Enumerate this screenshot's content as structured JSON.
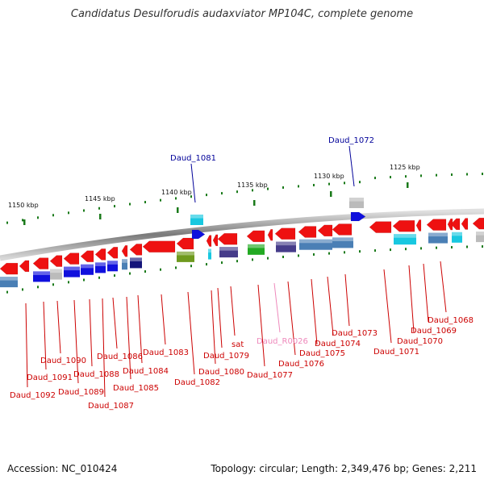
{
  "title": "Candidatus Desulforudis audaxviator MP104C, complete genome",
  "footer": {
    "accession": "Accession: NC_010424",
    "topology": "Topology: circular; Length: 2,349,476 bp; Genes: 2,211"
  },
  "scale": [
    "1150 kbp",
    "1145 kbp",
    "1140 kbp",
    "1135 kbp",
    "1130 kbp",
    "1125 kbp"
  ],
  "top_labels": [
    "Daud_1081",
    "Daud_1072"
  ],
  "bottom_labels": [
    "Daud_1092",
    "Daud_1091",
    "Daud_1090",
    "Daud_1089",
    "Daud_1088",
    "Daud_1087",
    "Daud_1086",
    "Daud_1085",
    "Daud_1084",
    "Daud_1083",
    "Daud_1082",
    "Daud_1080",
    "Daud_1079",
    "sat",
    "Daud_1077",
    "Daud_R0026",
    "Daud_1076",
    "Daud_1075",
    "Daud_1074",
    "Daud_1073",
    "Daud_1071",
    "Daud_1070",
    "Daud_1069",
    "Daud_1068"
  ],
  "colors": {
    "gene_red": "#ee1111",
    "gene_blue": "#1010dd",
    "gene_navy": "#14147a",
    "gene_steel": "#4a7fb5",
    "gene_cyan": "#18c8e0",
    "gene_olive": "#6f9a1e",
    "gene_green": "#22aa22",
    "gene_purple": "#463c8a",
    "gene_gray": "#bbbbbb",
    "label_red": "#cc0000",
    "label_blue": "#000099",
    "label_pink": "#ee88bb",
    "tick_green": "#1a7a1a"
  }
}
